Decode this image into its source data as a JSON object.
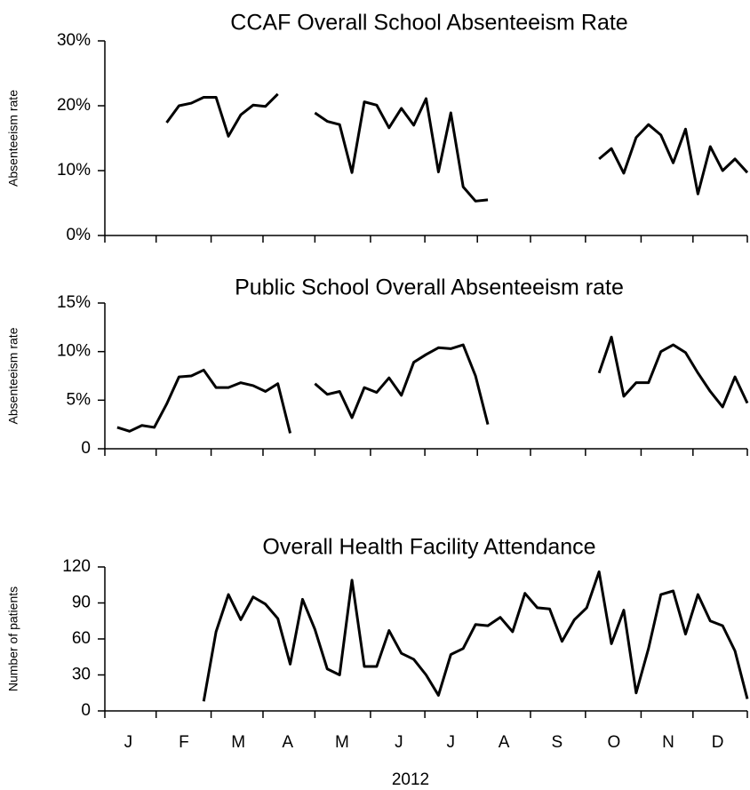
{
  "chart_data": [
    {
      "type": "line",
      "title": "CCAF Overall School Absenteeism Rate",
      "ylabel": "Absenteeism rate",
      "x": [
        1,
        2,
        3,
        4,
        5,
        6,
        7,
        8,
        9,
        10,
        11,
        12,
        13,
        14,
        15,
        16,
        17,
        18,
        19,
        20,
        21,
        22,
        23,
        24,
        25,
        26,
        27,
        28,
        29,
        30,
        31,
        32,
        33,
        34,
        35,
        36,
        37,
        38,
        39,
        40,
        41,
        42,
        43,
        44,
        45,
        46,
        47,
        48,
        49,
        50,
        51,
        52
      ],
      "series": [
        {
          "name": "CCAF",
          "color": "#000000",
          "values": [
            null,
            null,
            null,
            null,
            17.4,
            20.0,
            20.4,
            21.3,
            21.3,
            15.3,
            18.6,
            20.1,
            19.9,
            21.8,
            null,
            null,
            18.9,
            17.6,
            17.1,
            9.7,
            20.6,
            20.1,
            16.6,
            19.6,
            17.0,
            21.1,
            9.8,
            18.9,
            7.5,
            5.3,
            5.5,
            null,
            null,
            null,
            null,
            null,
            null,
            null,
            null,
            11.8,
            13.4,
            9.6,
            15.1,
            17.1,
            15.5,
            11.2,
            16.4,
            6.4,
            13.7,
            10.0,
            11.8,
            9.7
          ]
        }
      ],
      "xlim": [
        0,
        52
      ],
      "ylim": [
        0,
        30
      ],
      "yticks": [
        {
          "value": 0,
          "label": "0%"
        },
        {
          "value": 10,
          "label": "10%"
        },
        {
          "value": 20,
          "label": "20%"
        },
        {
          "value": 30,
          "label": "30%"
        }
      ]
    },
    {
      "type": "line",
      "title": "Public School Overall Absenteeism rate",
      "ylabel": "Absenteeism rate",
      "x": [
        1,
        2,
        3,
        4,
        5,
        6,
        7,
        8,
        9,
        10,
        11,
        12,
        13,
        14,
        15,
        16,
        17,
        18,
        19,
        20,
        21,
        22,
        23,
        24,
        25,
        26,
        27,
        28,
        29,
        30,
        31,
        32,
        33,
        34,
        35,
        36,
        37,
        38,
        39,
        40,
        41,
        42,
        43,
        44,
        45,
        46,
        47,
        48,
        49,
        50,
        51,
        52
      ],
      "series": [
        {
          "name": "Public School",
          "color": "#000000",
          "values": [
            2.2,
            1.8,
            2.4,
            2.2,
            4.6,
            7.4,
            7.5,
            8.1,
            6.3,
            6.3,
            6.8,
            6.5,
            5.9,
            6.7,
            1.6,
            null,
            6.7,
            5.6,
            5.9,
            3.2,
            6.3,
            5.8,
            7.3,
            5.5,
            8.9,
            9.7,
            10.4,
            10.3,
            10.7,
            7.5,
            2.5,
            null,
            null,
            null,
            null,
            null,
            null,
            null,
            null,
            7.8,
            11.5,
            5.4,
            6.8,
            6.8,
            10.0,
            10.7,
            9.9,
            7.8,
            5.9,
            4.3,
            7.4,
            4.7
          ]
        }
      ],
      "xlim": [
        0,
        52
      ],
      "ylim": [
        0,
        15
      ],
      "yticks": [
        0,
        {
          "value": 5,
          "label": "5%"
        },
        {
          "value": 10,
          "label": "10%"
        },
        {
          "value": 15,
          "label": "15%"
        }
      ]
    },
    {
      "type": "line",
      "title": "Overall Health Facility Attendance",
      "ylabel": "Number of patients",
      "xlabel": "2012",
      "x": [
        1,
        2,
        3,
        4,
        5,
        6,
        7,
        8,
        9,
        10,
        11,
        12,
        13,
        14,
        15,
        16,
        17,
        18,
        19,
        20,
        21,
        22,
        23,
        24,
        25,
        26,
        27,
        28,
        29,
        30,
        31,
        32,
        33,
        34,
        35,
        36,
        37,
        38,
        39,
        40,
        41,
        42,
        43,
        44,
        45,
        46,
        47,
        48,
        49,
        50,
        51,
        52
      ],
      "series": [
        {
          "name": "Health Facility",
          "color": "#000000",
          "values": [
            null,
            null,
            null,
            null,
            null,
            null,
            null,
            8,
            66,
            97,
            76,
            95,
            89,
            77,
            39,
            93,
            68,
            35,
            30,
            109,
            37,
            37,
            67,
            48,
            43,
            30,
            13,
            47,
            52,
            72,
            71,
            78,
            66,
            98,
            86,
            85,
            58,
            76,
            86,
            116,
            56,
            84,
            15,
            52,
            97,
            100,
            64,
            97,
            75,
            71,
            50,
            10
          ]
        }
      ],
      "xlim": [
        0,
        52
      ],
      "ylim": [
        0,
        120
      ],
      "yticks": [
        0,
        30,
        60,
        90,
        120
      ],
      "xticks": [
        {
          "value": 1.9,
          "label": "J"
        },
        {
          "value": 6.4,
          "label": "F"
        },
        {
          "value": 10.8,
          "label": "M"
        },
        {
          "value": 14.8,
          "label": "A"
        },
        {
          "value": 19.2,
          "label": "M"
        },
        {
          "value": 23.8,
          "label": "J"
        },
        {
          "value": 28.0,
          "label": "J"
        },
        {
          "value": 32.3,
          "label": "A"
        },
        {
          "value": 36.6,
          "label": "S"
        },
        {
          "value": 41.2,
          "label": "O"
        },
        {
          "value": 45.6,
          "label": "N"
        },
        {
          "value": 49.6,
          "label": "D"
        }
      ]
    }
  ]
}
